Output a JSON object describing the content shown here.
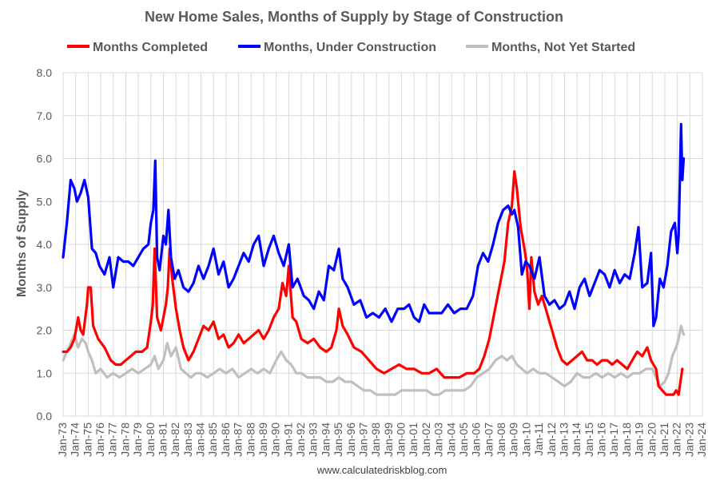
{
  "chart_data": {
    "type": "line",
    "title": "New Home Sales, Months of Supply by Stage of Construction",
    "xlabel": "",
    "ylabel": "Months of Supply",
    "ylim": [
      0,
      8
    ],
    "yticks": [
      "0.0",
      "1.0",
      "2.0",
      "3.0",
      "4.0",
      "5.0",
      "6.0",
      "7.0",
      "8.0"
    ],
    "xlim": [
      1973,
      2024
    ],
    "xticks": [
      "Jan-73",
      "Jan-74",
      "Jan-75",
      "Jan-76",
      "Jan-77",
      "Jan-78",
      "Jan-79",
      "Jan-80",
      "Jan-81",
      "Jan-82",
      "Jan-83",
      "Jan-84",
      "Jan-85",
      "Jan-86",
      "Jan-87",
      "Jan-88",
      "Jan-89",
      "Jan-90",
      "Jan-91",
      "Jan-92",
      "Jan-93",
      "Jan-94",
      "Jan-95",
      "Jan-96",
      "Jan-97",
      "Jan-98",
      "Jan-99",
      "Jan-00",
      "Jan-01",
      "Jan-02",
      "Jan-03",
      "Jan-04",
      "Jan-05",
      "Jan-06",
      "Jan-07",
      "Jan-08",
      "Jan-09",
      "Jan-10",
      "Jan-11",
      "Jan-12",
      "Jan-13",
      "Jan-14",
      "Jan-15",
      "Jan-16",
      "Jan-17",
      "Jan-18",
      "Jan-19",
      "Jan-20",
      "Jan-21",
      "Jan-22",
      "Jan-23",
      "Jan-24"
    ],
    "grid": true,
    "legend_position": "top",
    "series": [
      {
        "name": "Months Completed",
        "color": "#ff0000",
        "x": [
          1973.0,
          1973.3,
          1973.6,
          1973.9,
          1974.2,
          1974.4,
          1974.6,
          1974.9,
          1975.0,
          1975.2,
          1975.4,
          1975.8,
          1976.3,
          1976.8,
          1977.2,
          1977.6,
          1978.0,
          1978.4,
          1978.8,
          1979.3,
          1979.7,
          1980.0,
          1980.15,
          1980.3,
          1980.5,
          1980.8,
          1981.0,
          1981.2,
          1981.35,
          1981.5,
          1981.7,
          1982.0,
          1982.3,
          1982.6,
          1983.0,
          1983.4,
          1983.8,
          1984.2,
          1984.6,
          1985.0,
          1985.4,
          1985.8,
          1986.2,
          1986.6,
          1987.0,
          1987.4,
          1987.8,
          1988.2,
          1988.6,
          1989.0,
          1989.4,
          1989.8,
          1990.2,
          1990.5,
          1990.8,
          1991.0,
          1991.3,
          1991.6,
          1992.0,
          1992.5,
          1993.0,
          1993.5,
          1994.0,
          1994.4,
          1994.8,
          1995.0,
          1995.3,
          1995.7,
          1996.2,
          1996.8,
          1997.4,
          1998.0,
          1998.6,
          1999.2,
          1999.8,
          2000.4,
          2001.0,
          2001.6,
          2002.2,
          2002.8,
          2003.4,
          2004.0,
          2004.6,
          2005.2,
          2005.8,
          2006.2,
          2006.6,
          2007.0,
          2007.4,
          2007.8,
          2008.2,
          2008.5,
          2008.8,
          2009.0,
          2009.2,
          2009.5,
          2009.8,
          2010.0,
          2010.2,
          2010.35,
          2010.6,
          2010.9,
          2011.2,
          2011.6,
          2012.0,
          2012.4,
          2012.8,
          2013.2,
          2013.6,
          2014.0,
          2014.4,
          2014.8,
          2015.2,
          2015.6,
          2016.0,
          2016.4,
          2016.8,
          2017.2,
          2017.6,
          2018.0,
          2018.4,
          2018.8,
          2019.2,
          2019.6,
          2019.9,
          2020.1,
          2020.3,
          2020.5,
          2020.8,
          2021.1,
          2021.4,
          2021.7,
          2021.9,
          2022.1,
          2022.25,
          2022.4
        ],
        "values": [
          1.5,
          1.5,
          1.6,
          1.8,
          2.3,
          2.0,
          1.9,
          2.6,
          3.0,
          3.0,
          2.1,
          1.8,
          1.6,
          1.3,
          1.2,
          1.2,
          1.3,
          1.4,
          1.5,
          1.5,
          1.6,
          2.2,
          2.6,
          3.9,
          2.3,
          2.0,
          2.3,
          2.6,
          3.0,
          3.9,
          3.2,
          2.5,
          2.0,
          1.6,
          1.3,
          1.5,
          1.8,
          2.1,
          2.0,
          2.2,
          1.8,
          1.9,
          1.6,
          1.7,
          1.9,
          1.7,
          1.8,
          1.9,
          2.0,
          1.8,
          2.0,
          2.3,
          2.5,
          3.1,
          2.8,
          3.5,
          2.3,
          2.2,
          1.8,
          1.7,
          1.8,
          1.6,
          1.5,
          1.6,
          2.0,
          2.5,
          2.1,
          1.9,
          1.6,
          1.5,
          1.3,
          1.1,
          1.0,
          1.1,
          1.2,
          1.1,
          1.1,
          1.0,
          1.0,
          1.1,
          0.9,
          0.9,
          0.9,
          1.0,
          1.0,
          1.1,
          1.4,
          1.8,
          2.4,
          3.0,
          3.6,
          4.5,
          4.9,
          5.7,
          5.3,
          4.4,
          3.9,
          3.5,
          2.5,
          3.7,
          2.9,
          2.6,
          2.8,
          2.4,
          2.0,
          1.6,
          1.3,
          1.2,
          1.3,
          1.4,
          1.5,
          1.3,
          1.3,
          1.2,
          1.3,
          1.3,
          1.2,
          1.3,
          1.2,
          1.1,
          1.3,
          1.5,
          1.4,
          1.6,
          1.3,
          1.2,
          1.1,
          0.7,
          0.6,
          0.5,
          0.5,
          0.5,
          0.6,
          0.5,
          0.8,
          1.1
        ]
      },
      {
        "name": "Months, Under Construction",
        "color": "#0000ff",
        "x": [
          1973.0,
          1973.3,
          1973.6,
          1973.9,
          1974.1,
          1974.4,
          1974.7,
          1975.0,
          1975.3,
          1975.6,
          1975.9,
          1976.3,
          1976.7,
          1977.0,
          1977.4,
          1977.8,
          1978.2,
          1978.6,
          1979.0,
          1979.4,
          1979.8,
          1980.0,
          1980.2,
          1980.35,
          1980.5,
          1980.7,
          1981.0,
          1981.2,
          1981.4,
          1981.6,
          1981.9,
          1982.2,
          1982.6,
          1983.0,
          1983.4,
          1983.8,
          1984.2,
          1984.6,
          1985.0,
          1985.4,
          1985.8,
          1986.2,
          1986.6,
          1987.0,
          1987.4,
          1987.8,
          1988.2,
          1988.6,
          1989.0,
          1989.4,
          1989.8,
          1990.2,
          1990.6,
          1991.0,
          1991.3,
          1991.7,
          1992.2,
          1992.6,
          1993.0,
          1993.4,
          1993.8,
          1994.2,
          1994.6,
          1995.0,
          1995.3,
          1995.7,
          1996.2,
          1996.7,
          1997.2,
          1997.7,
          1998.2,
          1998.7,
          1999.2,
          1999.7,
          2000.2,
          2000.6,
          2001.0,
          2001.4,
          2001.8,
          2002.2,
          2002.7,
          2003.2,
          2003.7,
          2004.2,
          2004.7,
          2005.2,
          2005.7,
          2006.1,
          2006.5,
          2006.9,
          2007.3,
          2007.7,
          2008.1,
          2008.5,
          2008.8,
          2009.0,
          2009.3,
          2009.6,
          2009.9,
          2010.2,
          2010.6,
          2011.0,
          2011.4,
          2011.8,
          2012.2,
          2012.6,
          2013.0,
          2013.4,
          2013.8,
          2014.2,
          2014.6,
          2015.0,
          2015.4,
          2015.8,
          2016.2,
          2016.6,
          2017.0,
          2017.4,
          2017.8,
          2018.2,
          2018.6,
          2018.9,
          2019.2,
          2019.6,
          2019.9,
          2020.1,
          2020.3,
          2020.6,
          2020.9,
          2021.2,
          2021.5,
          2021.8,
          2022.0,
          2022.1,
          2022.2,
          2022.3,
          2022.4,
          2022.5
        ],
        "values": [
          3.7,
          4.5,
          5.5,
          5.3,
          5.0,
          5.2,
          5.5,
          5.1,
          3.9,
          3.8,
          3.5,
          3.3,
          3.7,
          3.0,
          3.7,
          3.6,
          3.6,
          3.5,
          3.7,
          3.9,
          4.0,
          4.5,
          4.8,
          5.95,
          3.7,
          3.4,
          4.2,
          4.0,
          4.8,
          3.7,
          3.2,
          3.4,
          3.0,
          2.9,
          3.1,
          3.5,
          3.2,
          3.5,
          3.9,
          3.3,
          3.6,
          3.0,
          3.2,
          3.5,
          3.8,
          3.6,
          4.0,
          4.2,
          3.5,
          3.9,
          4.2,
          3.8,
          3.5,
          4.0,
          3.0,
          3.2,
          2.8,
          2.7,
          2.5,
          2.9,
          2.7,
          3.5,
          3.4,
          3.9,
          3.2,
          3.0,
          2.6,
          2.7,
          2.3,
          2.4,
          2.3,
          2.5,
          2.2,
          2.5,
          2.5,
          2.6,
          2.3,
          2.2,
          2.6,
          2.4,
          2.4,
          2.4,
          2.6,
          2.4,
          2.5,
          2.5,
          2.8,
          3.5,
          3.8,
          3.6,
          4.0,
          4.5,
          4.8,
          4.9,
          4.7,
          4.8,
          4.4,
          3.3,
          3.6,
          3.5,
          3.2,
          3.7,
          2.8,
          2.6,
          2.7,
          2.5,
          2.6,
          2.9,
          2.5,
          3.0,
          3.2,
          2.8,
          3.1,
          3.4,
          3.3,
          3.0,
          3.4,
          3.1,
          3.3,
          3.2,
          3.8,
          4.4,
          3.0,
          3.1,
          3.8,
          2.1,
          2.3,
          3.2,
          3.0,
          3.5,
          4.3,
          4.5,
          3.8,
          4.2,
          5.5,
          6.8,
          5.5,
          6.0
        ]
      },
      {
        "name": "Months, Not Yet Started",
        "color": "#bfbfbf",
        "x": [
          1973.0,
          1973.3,
          1973.6,
          1973.9,
          1974.2,
          1974.5,
          1974.8,
          1975.0,
          1975.3,
          1975.6,
          1976.0,
          1976.5,
          1977.0,
          1977.5,
          1978.0,
          1978.5,
          1979.0,
          1979.5,
          1980.0,
          1980.3,
          1980.6,
          1981.0,
          1981.3,
          1981.6,
          1982.0,
          1982.4,
          1982.8,
          1983.2,
          1983.6,
          1984.0,
          1984.5,
          1985.0,
          1985.5,
          1986.0,
          1986.5,
          1987.0,
          1987.5,
          1988.0,
          1988.5,
          1989.0,
          1989.5,
          1990.0,
          1990.4,
          1990.8,
          1991.2,
          1991.6,
          1992.0,
          1992.5,
          1993.0,
          1993.5,
          1994.0,
          1994.5,
          1995.0,
          1995.5,
          1996.0,
          1996.5,
          1997.0,
          1997.5,
          1998.0,
          1998.5,
          1999.0,
          1999.5,
          2000.0,
          2000.5,
          2001.0,
          2001.5,
          2002.0,
          2002.5,
          2003.0,
          2003.5,
          2004.0,
          2004.5,
          2005.0,
          2005.5,
          2006.0,
          2006.5,
          2007.0,
          2007.5,
          2008.0,
          2008.4,
          2008.8,
          2009.2,
          2009.6,
          2010.0,
          2010.5,
          2011.0,
          2011.5,
          2012.0,
          2012.5,
          2013.0,
          2013.5,
          2014.0,
          2014.5,
          2015.0,
          2015.5,
          2016.0,
          2016.5,
          2017.0,
          2017.5,
          2018.0,
          2018.5,
          2019.0,
          2019.5,
          2020.0,
          2020.3,
          2020.6,
          2021.0,
          2021.3,
          2021.6,
          2021.9,
          2022.1,
          2022.3,
          2022.5
        ],
        "values": [
          1.3,
          1.5,
          1.7,
          1.9,
          1.6,
          1.8,
          1.7,
          1.5,
          1.3,
          1.0,
          1.1,
          0.9,
          1.0,
          0.9,
          1.0,
          1.1,
          1.0,
          1.1,
          1.2,
          1.4,
          1.1,
          1.3,
          1.7,
          1.4,
          1.6,
          1.1,
          1.0,
          0.9,
          1.0,
          1.0,
          0.9,
          1.0,
          1.1,
          1.0,
          1.1,
          0.9,
          1.0,
          1.1,
          1.0,
          1.1,
          1.0,
          1.3,
          1.5,
          1.3,
          1.2,
          1.0,
          1.0,
          0.9,
          0.9,
          0.9,
          0.8,
          0.8,
          0.9,
          0.8,
          0.8,
          0.7,
          0.6,
          0.6,
          0.5,
          0.5,
          0.5,
          0.5,
          0.6,
          0.6,
          0.6,
          0.6,
          0.6,
          0.5,
          0.5,
          0.6,
          0.6,
          0.6,
          0.6,
          0.7,
          0.9,
          1.0,
          1.1,
          1.3,
          1.4,
          1.3,
          1.4,
          1.2,
          1.1,
          1.0,
          1.1,
          1.0,
          1.0,
          0.9,
          0.8,
          0.7,
          0.8,
          1.0,
          0.9,
          0.9,
          1.0,
          0.9,
          1.0,
          0.9,
          1.0,
          0.9,
          1.0,
          1.0,
          1.1,
          1.1,
          0.9,
          0.7,
          0.8,
          1.0,
          1.4,
          1.6,
          1.8,
          2.1,
          1.9
        ]
      }
    ],
    "source": "www.calculatedriskblog.com"
  }
}
